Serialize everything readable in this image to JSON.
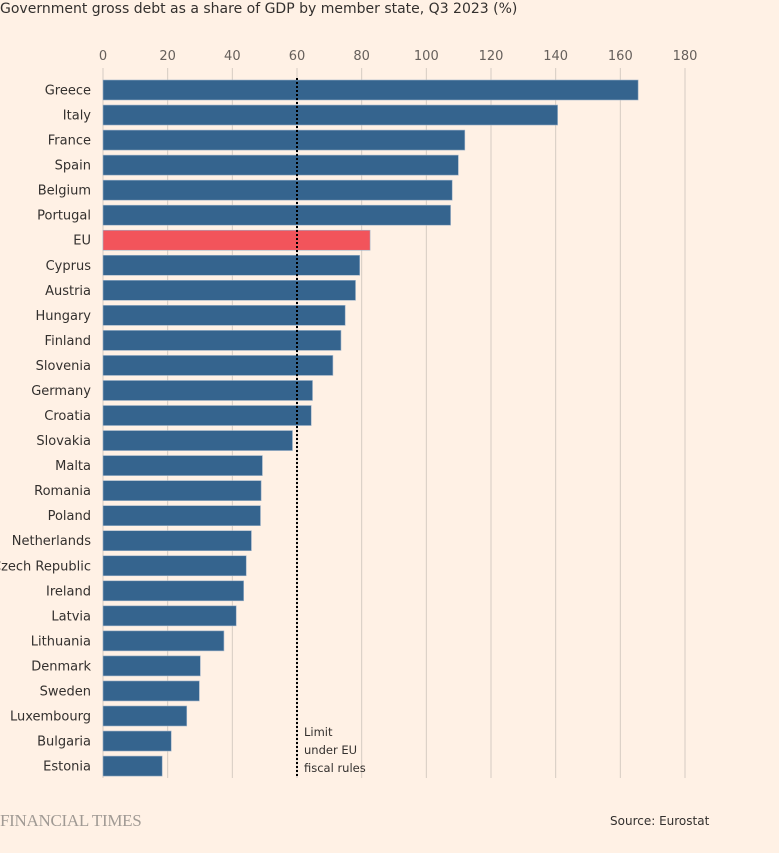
{
  "chart_data": {
    "type": "bar",
    "orientation": "horizontal",
    "title": "Government gross debt as a share of GDP by member state, Q3 2023 (%)",
    "categories": [
      "Greece",
      "Italy",
      "France",
      "Spain",
      "Belgium",
      "Portugal",
      "EU",
      "Cyprus",
      "Austria",
      "Hungary",
      "Finland",
      "Slovenia",
      "Germany",
      "Croatia",
      "Slovakia",
      "Malta",
      "Romania",
      "Poland",
      "Netherlands",
      "Czech Republic",
      "Ireland",
      "Latvia",
      "Lithuania",
      "Denmark",
      "Sweden",
      "Luxembourg",
      "Bulgaria",
      "Estonia"
    ],
    "values": [
      165.5,
      140.6,
      111.9,
      109.9,
      108.0,
      107.5,
      82.6,
      79.4,
      78.1,
      74.9,
      73.6,
      71.1,
      64.8,
      64.4,
      58.6,
      49.3,
      48.9,
      48.7,
      45.9,
      44.3,
      43.5,
      41.2,
      37.4,
      30.1,
      29.8,
      25.9,
      21.1,
      18.3
    ],
    "highlight": "EU",
    "xlim": [
      0,
      180
    ],
    "xticks": [
      0,
      20,
      40,
      60,
      80,
      100,
      120,
      140,
      160,
      180
    ],
    "grid": true,
    "reference_line": {
      "value": 60,
      "label_lines": [
        "Limit",
        "under EU",
        "fiscal rules"
      ]
    },
    "colors": {
      "bar": "#35648e",
      "highlight": "#f2545b",
      "background": "#fff1e5"
    }
  },
  "footer": {
    "logo": "FINANCIAL TIMES",
    "source": "Source: Eurostat"
  }
}
